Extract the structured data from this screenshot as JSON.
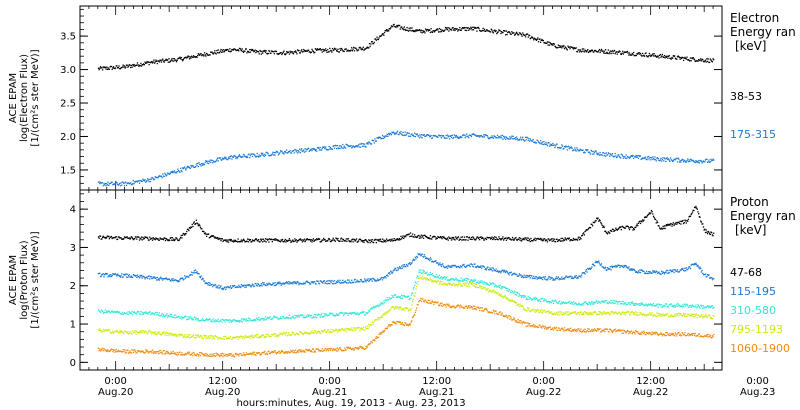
{
  "chart_data": [
    {
      "type": "scatter",
      "ylabel_lines": [
        "ACE EPAM",
        "log(Electron Flux)",
        "[1/(cm²s ster MeV)]"
      ],
      "ylim": [
        1.2,
        3.95
      ],
      "yticks": [
        1.5,
        2.0,
        2.5,
        3.0,
        3.5
      ],
      "ytick_labels": [
        "1.5",
        "2.0",
        "2.5",
        "3.0",
        "3.5"
      ],
      "legend_title": [
        "Electron",
        "Energy ran"
      ],
      "legend_unit": "[keV]",
      "series": [
        {
          "name": "38-53",
          "color": "#000000",
          "x": [
            0,
            6,
            12,
            18,
            24,
            30,
            36,
            42,
            48,
            54,
            60,
            66,
            72,
            78,
            84,
            90,
            96,
            102,
            108,
            114,
            120,
            126,
            132,
            138
          ],
          "y": [
            3.02,
            3.05,
            3.12,
            3.16,
            3.24,
            3.31,
            3.27,
            3.26,
            3.29,
            3.3,
            3.33,
            3.66,
            3.58,
            3.61,
            3.62,
            3.57,
            3.52,
            3.37,
            3.3,
            3.28,
            3.25,
            3.21,
            3.17,
            3.14
          ]
        },
        {
          "name": "175-315",
          "color": "#1a7ad6",
          "x": [
            0,
            6,
            12,
            18,
            24,
            30,
            36,
            42,
            48,
            54,
            60,
            66,
            72,
            78,
            84,
            90,
            96,
            102,
            108,
            114,
            120,
            126,
            132,
            138
          ],
          "y": [
            1.3,
            1.3,
            1.37,
            1.5,
            1.62,
            1.7,
            1.73,
            1.78,
            1.81,
            1.86,
            1.88,
            2.07,
            2.02,
            2.0,
            2.02,
            2.0,
            1.97,
            1.88,
            1.8,
            1.74,
            1.7,
            1.67,
            1.65,
            1.64
          ]
        }
      ]
    },
    {
      "type": "scatter",
      "ylabel_lines": [
        "ACE EPAM",
        "log(Proton Flux)",
        "[1/(cm²s ster MeV)]"
      ],
      "ylim": [
        -0.2,
        4.5
      ],
      "yticks": [
        0,
        1,
        2,
        3,
        4
      ],
      "ytick_labels": [
        "0",
        "1",
        "2",
        "3",
        "4"
      ],
      "legend_title": [
        "Proton",
        "Energy ran"
      ],
      "legend_unit": "[keV]",
      "series": [
        {
          "name": "47-68",
          "color": "#000000",
          "x": [
            0,
            6,
            12,
            18,
            22,
            24,
            28,
            36,
            48,
            54,
            60,
            66,
            70,
            72,
            78,
            84,
            90,
            96,
            102,
            108,
            112,
            114,
            118,
            120,
            124,
            126,
            128,
            132,
            134,
            136,
            138
          ],
          "y": [
            3.28,
            3.26,
            3.25,
            3.22,
            3.7,
            3.35,
            3.2,
            3.2,
            3.2,
            3.22,
            3.18,
            3.2,
            3.35,
            3.3,
            3.25,
            3.25,
            3.25,
            3.22,
            3.2,
            3.25,
            3.78,
            3.4,
            3.55,
            3.5,
            3.95,
            3.5,
            3.6,
            3.7,
            4.1,
            3.45,
            3.35
          ]
        },
        {
          "name": "115-195",
          "color": "#1a7ad6",
          "x": [
            0,
            6,
            12,
            18,
            22,
            24,
            28,
            36,
            48,
            54,
            60,
            64,
            66,
            70,
            72,
            78,
            84,
            90,
            96,
            102,
            108,
            112,
            114,
            118,
            120,
            126,
            132,
            134,
            136,
            138
          ],
          "y": [
            2.3,
            2.28,
            2.22,
            2.15,
            2.4,
            2.1,
            1.95,
            2.05,
            2.1,
            2.12,
            2.15,
            2.2,
            2.4,
            2.6,
            2.85,
            2.5,
            2.55,
            2.4,
            2.25,
            2.2,
            2.25,
            2.65,
            2.45,
            2.55,
            2.4,
            2.35,
            2.45,
            2.6,
            2.3,
            2.2
          ]
        },
        {
          "name": "310-580",
          "color": "#33e6d6",
          "x": [
            0,
            6,
            12,
            18,
            24,
            30,
            36,
            42,
            48,
            54,
            60,
            66,
            70,
            72,
            78,
            84,
            90,
            96,
            102,
            108,
            114,
            120,
            126,
            132,
            138
          ],
          "y": [
            1.35,
            1.3,
            1.3,
            1.2,
            1.12,
            1.1,
            1.15,
            1.2,
            1.22,
            1.28,
            1.3,
            1.75,
            1.7,
            2.4,
            2.2,
            2.15,
            2.0,
            1.7,
            1.6,
            1.55,
            1.6,
            1.55,
            1.5,
            1.5,
            1.45
          ]
        },
        {
          "name": "795-1193",
          "color": "#ccea10",
          "x": [
            0,
            6,
            12,
            18,
            24,
            30,
            36,
            42,
            48,
            54,
            60,
            66,
            70,
            72,
            78,
            84,
            90,
            96,
            102,
            108,
            114,
            120,
            126,
            132,
            138
          ],
          "y": [
            0.85,
            0.8,
            0.8,
            0.72,
            0.68,
            0.65,
            0.7,
            0.75,
            0.8,
            0.85,
            0.9,
            1.45,
            1.4,
            2.25,
            2.05,
            2.05,
            1.8,
            1.4,
            1.3,
            1.3,
            1.3,
            1.3,
            1.25,
            1.25,
            1.2
          ]
        },
        {
          "name": "1060-1900",
          "color": "#f08a10",
          "x": [
            0,
            6,
            12,
            18,
            24,
            30,
            36,
            42,
            48,
            54,
            60,
            66,
            70,
            72,
            78,
            84,
            90,
            96,
            102,
            108,
            114,
            120,
            126,
            132,
            138
          ],
          "y": [
            0.35,
            0.3,
            0.3,
            0.25,
            0.22,
            0.2,
            0.25,
            0.3,
            0.32,
            0.35,
            0.4,
            1.05,
            1.0,
            1.65,
            1.5,
            1.45,
            1.3,
            1.0,
            0.9,
            0.85,
            0.85,
            0.8,
            0.75,
            0.75,
            0.7
          ]
        }
      ]
    }
  ],
  "x_axis": {
    "xlim": [
      -4,
      140
    ],
    "ticks": [
      4,
      16,
      28,
      40,
      52,
      64,
      76,
      88,
      100,
      112,
      124,
      136
    ],
    "major_ticks": [
      4,
      28,
      52,
      76,
      100,
      124
    ],
    "labels": [
      {
        "x": 4,
        "time": "0:00",
        "date": "Aug.20"
      },
      {
        "x": 28,
        "time": "12:00",
        "date": "Aug.20"
      },
      {
        "x": 52,
        "time": "0:00",
        "date": "Aug.21"
      },
      {
        "x": 76,
        "time": "12:00",
        "date": "Aug.21"
      },
      {
        "x": 100,
        "time": "0:00",
        "date": "Aug.22"
      },
      {
        "x": 124,
        "time": "12:00",
        "date": "Aug.22"
      },
      {
        "x": 148,
        "time": "0:00",
        "date": "Aug.23"
      }
    ],
    "title": "hours:minutes, Aug. 19, 2013 - Aug. 23, 2013"
  }
}
